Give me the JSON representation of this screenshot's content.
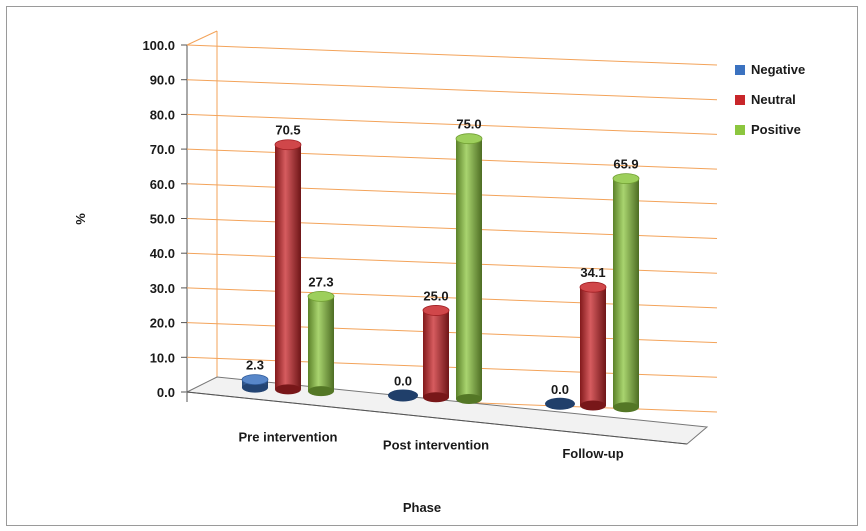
{
  "chart_data": {
    "type": "bar",
    "style": "3d-cylinder",
    "categories": [
      "Pre intervention",
      "Post intervention",
      "Follow-up"
    ],
    "series": [
      {
        "name": "Negative",
        "values": [
          2.3,
          0.0,
          0.0
        ],
        "color": "#3b72c0"
      },
      {
        "name": "Neutral",
        "values": [
          70.5,
          25.0,
          34.1
        ],
        "color": "#c8262a"
      },
      {
        "name": "Positive",
        "values": [
          27.3,
          75.0,
          65.9
        ],
        "color": "#8cc63f"
      }
    ],
    "yticks": [
      "0.0",
      "10.0",
      "20.0",
      "30.0",
      "40.0",
      "50.0",
      "60.0",
      "70.0",
      "80.0",
      "90.0",
      "100.0"
    ],
    "ylim": [
      0,
      100
    ],
    "xlabel": "Phase",
    "ylabel": "%",
    "grid_color": "#f3a35a",
    "legend_position": "right"
  }
}
